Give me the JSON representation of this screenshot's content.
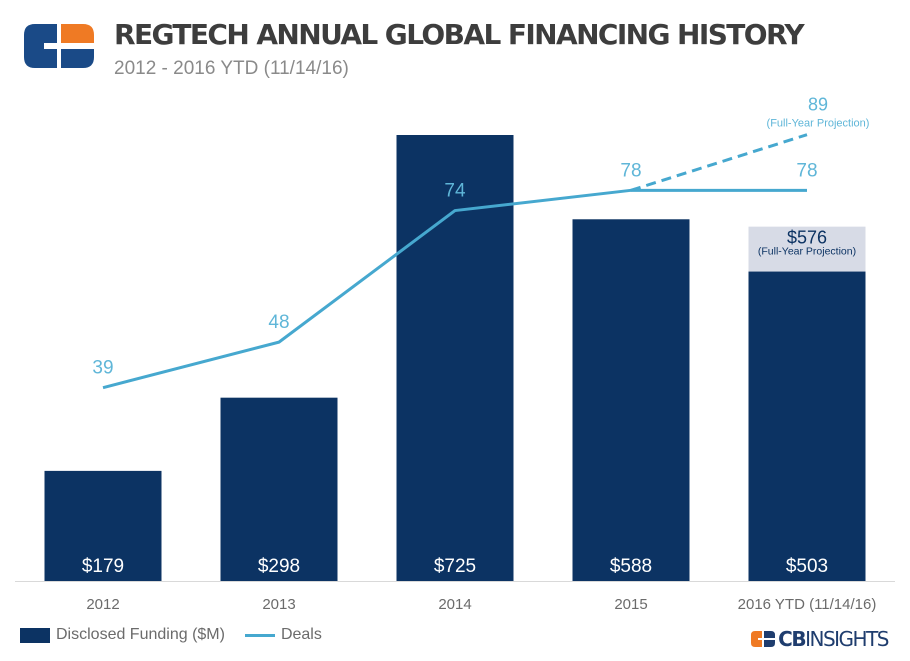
{
  "header": {
    "title": "REGTECH ANNUAL GLOBAL FINANCING HISTORY",
    "subtitle": "2012 - 2016 YTD (11/14/16)"
  },
  "colors": {
    "bar": "#0c3363",
    "projection_bar": "#d7dbe6",
    "line": "#46a8cf",
    "deal_label": "#5fb6d8",
    "axis_label": "#6b6b6b",
    "logo_orange": "#ef7a24",
    "logo_blue": "#1a4a87"
  },
  "legend": {
    "funding": "Disclosed Funding ($M)",
    "deals": "Deals"
  },
  "brand": {
    "cb": "CB",
    "insights": "INSIGHTS"
  },
  "chart_data": {
    "type": "bar+line",
    "categories": [
      "2012",
      "2013",
      "2014",
      "2015",
      "2016 YTD (11/14/16)"
    ],
    "series": [
      {
        "name": "Disclosed Funding ($M)",
        "type": "bar",
        "values": [
          179,
          298,
          725,
          588,
          503
        ],
        "labels": [
          "$179",
          "$298",
          "$725",
          "$588",
          "$503"
        ]
      },
      {
        "name": "Deals",
        "type": "line",
        "values": [
          39,
          48,
          74,
          78,
          78
        ],
        "labels": [
          "39",
          "48",
          "74",
          "78",
          "78"
        ]
      }
    ],
    "projection": {
      "funding_value": 576,
      "funding_label": "$576",
      "funding_note": "(Full-Year Projection)",
      "deals_value": 89,
      "deals_label": "89",
      "deals_note": "(Full-Year Projection)"
    },
    "funding_range": [
      0,
      800
    ],
    "deals_range": [
      0,
      100
    ]
  }
}
